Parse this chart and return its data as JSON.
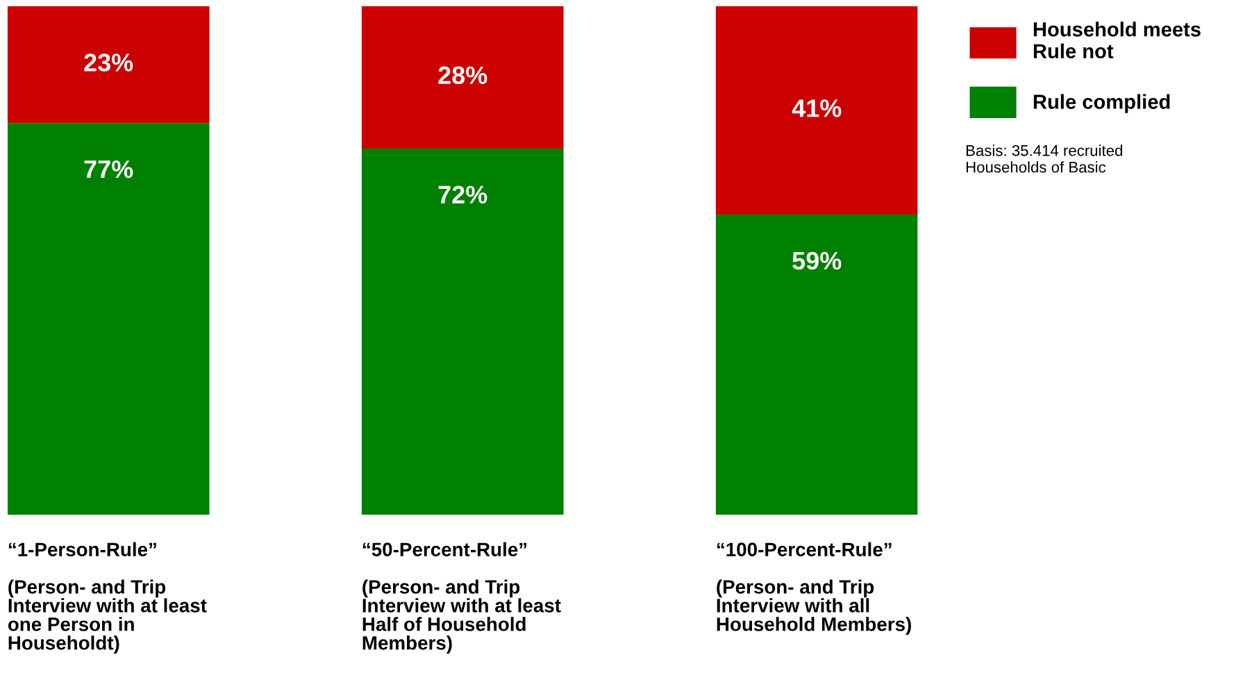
{
  "chart_data": {
    "type": "bar",
    "stacked": true,
    "tick_labels": "x",
    "legend": "top right",
    "grid": false,
    "categories": [
      "“1-Person-Rule”\n\n(Person- and Trip\nInterview with at least\none Person in\nHouseholdt)",
      "“50-Percent-Rule”\n\n(Person- and Trip\nInterview with at least\nHalf of Household\nMembers)",
      "“100-Percent-Rule”\n\n(Person- and Trip\nInterview with all\nHousehold Members)"
    ],
    "series": [
      {
        "name": "Rule complied",
        "color": "#008000",
        "values": [
          77,
          72,
          59
        ],
        "value_labels": [
          "77%",
          "72%",
          "59%"
        ]
      },
      {
        "name": "Household meets\nRule not",
        "color": "#cc0000",
        "values": [
          23,
          28,
          41
        ],
        "value_labels": [
          "23%",
          "28%",
          "41%"
        ]
      }
    ],
    "annotations": [
      "Basis: 35.414 recruited\nHouseholds of Basic"
    ]
  }
}
